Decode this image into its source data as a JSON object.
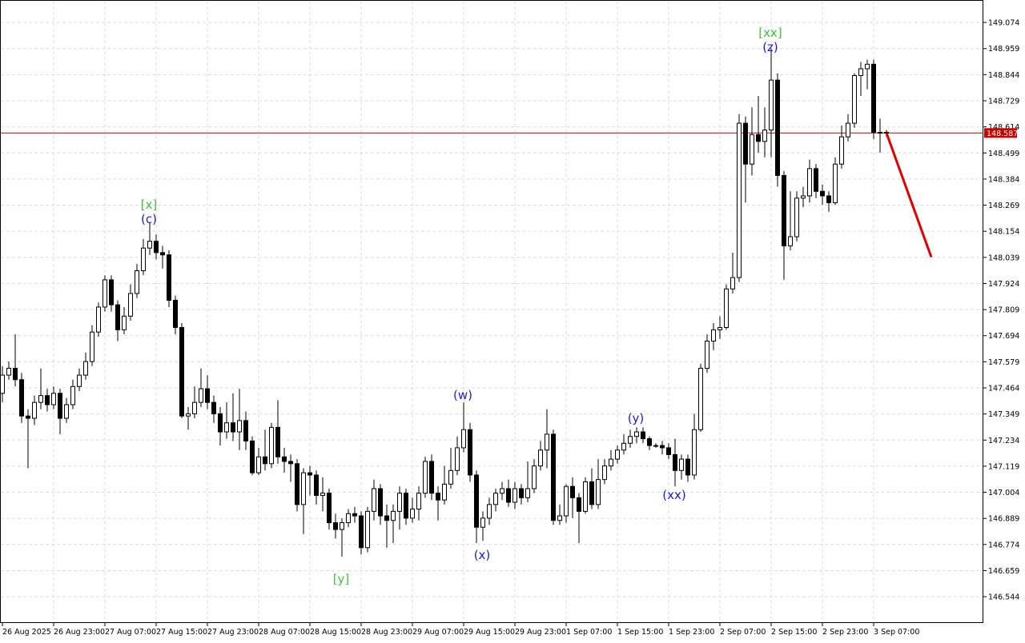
{
  "chart_data": {
    "type": "candlestick",
    "categories": [
      "26 Aug 2025",
      null,
      null,
      null,
      null,
      null,
      null,
      null,
      "26 Aug 23:00",
      null,
      null,
      null,
      null,
      null,
      null,
      null,
      "27 Aug 07:00",
      null,
      null,
      null,
      null,
      null,
      null,
      null,
      "27 Aug 15:00",
      null,
      null,
      null,
      null,
      null,
      null,
      null,
      "27 Aug 23:00",
      null,
      null,
      null,
      null,
      null,
      null,
      null,
      "28 Aug 07:00",
      null,
      null,
      null,
      null,
      null,
      null,
      null,
      "28 Aug 15:00",
      null,
      null,
      null,
      null,
      null,
      null,
      null,
      "28 Aug 23:00",
      null,
      null,
      null,
      null,
      null,
      null,
      null,
      "29 Aug 07:00",
      null,
      null,
      null,
      null,
      null,
      null,
      null,
      "29 Aug 15:00",
      null,
      null,
      null,
      null,
      null,
      null,
      null,
      "29 Aug 23:00",
      null,
      null,
      null,
      null,
      null,
      null,
      null,
      "1 Sep 07:00",
      null,
      null,
      null,
      null,
      null,
      null,
      null,
      "1 Sep 15:00",
      null,
      null,
      null,
      null,
      null,
      null,
      null,
      "1 Sep 23:00",
      null,
      null,
      null,
      null,
      null,
      null,
      null,
      "2 Sep 07:00",
      null,
      null,
      null,
      null,
      null,
      null,
      null,
      "2 Sep 15:00",
      null,
      null,
      null,
      null,
      null,
      null,
      null,
      "2 Sep 23:00",
      null,
      null,
      null,
      null,
      null,
      null,
      null,
      "3 Sep 07:00",
      null,
      null
    ],
    "open": [
      147.44,
      147.52,
      147.55,
      147.5,
      147.34,
      147.33,
      147.4,
      147.43,
      147.39,
      147.44,
      147.33,
      147.39,
      147.47,
      147.52,
      147.58,
      147.71,
      147.82,
      147.94,
      147.83,
      147.72,
      147.78,
      147.88,
      147.98,
      148.08,
      148.11,
      148.06,
      148.05,
      147.85,
      147.73,
      147.34,
      147.35,
      147.4,
      147.46,
      147.4,
      147.35,
      147.27,
      147.31,
      147.27,
      147.32,
      147.23,
      147.09,
      147.16,
      147.13,
      147.29,
      147.16,
      147.14,
      147.13,
      146.95,
      147.09,
      147.08,
      146.99,
      147.0,
      146.87,
      146.84,
      146.87,
      146.91,
      146.9,
      146.76,
      146.92,
      147.02,
      146.9,
      146.88,
      146.92,
      147.0,
      146.89,
      146.93,
      147.0,
      147.14,
      147.0,
      146.97,
      147.04,
      147.1,
      147.2,
      147.28,
      147.08,
      146.85,
      146.89,
      146.95,
      147.0,
      147.02,
      146.96,
      147.02,
      146.98,
      147.02,
      147.12,
      147.19,
      147.26,
      146.88,
      146.9,
      147.03,
      146.98,
      146.92,
      147.05,
      146.95,
      147.06,
      147.12,
      147.15,
      147.19,
      147.22,
      147.25,
      147.27,
      147.24,
      147.21,
      147.21,
      147.2,
      147.17,
      147.1,
      147.15,
      147.08,
      147.28,
      147.55,
      147.67,
      147.72,
      147.73,
      147.9,
      147.95,
      148.63,
      148.45,
      148.58,
      148.55,
      148.6,
      148.82,
      148.4,
      148.09,
      148.13,
      148.3,
      148.31,
      148.43,
      148.33,
      148.31,
      148.28,
      148.45,
      148.57,
      148.63,
      148.84,
      148.87,
      148.89,
      148.59,
      148.59
    ],
    "high": [
      147.56,
      147.58,
      147.7,
      147.53,
      147.37,
      147.43,
      147.55,
      147.46,
      147.47,
      147.46,
      147.42,
      147.5,
      147.55,
      147.62,
      147.74,
      147.84,
      147.96,
      147.96,
      147.85,
      147.82,
      147.92,
      148.01,
      148.12,
      148.19,
      148.14,
      148.09,
      148.07,
      147.87,
      147.75,
      147.38,
      147.47,
      147.55,
      147.52,
      147.43,
      147.38,
      147.4,
      147.44,
      147.46,
      147.36,
      147.25,
      147.2,
      147.28,
      147.31,
      147.41,
      147.2,
      147.17,
      147.15,
      147.11,
      147.12,
      147.1,
      147.07,
      147.02,
      146.91,
      146.89,
      146.93,
      146.94,
      146.92,
      146.94,
      147.06,
      147.04,
      146.95,
      146.95,
      147.03,
      147.02,
      146.98,
      147.03,
      147.16,
      147.17,
      147.03,
      147.12,
      147.2,
      147.25,
      147.4,
      147.31,
      147.1,
      146.92,
      146.98,
      147.02,
      147.05,
      147.06,
      147.05,
      147.04,
      147.14,
      147.15,
      147.23,
      147.37,
      147.28,
      146.95,
      147.04,
      147.07,
      147.0,
      147.07,
      147.11,
      147.15,
      147.15,
      147.19,
      147.21,
      147.26,
      147.28,
      147.29,
      147.29,
      147.25,
      147.22,
      147.23,
      147.22,
      147.24,
      147.17,
      147.17,
      147.35,
      147.57,
      147.7,
      147.75,
      147.78,
      147.92,
      148.06,
      148.67,
      148.66,
      148.7,
      148.75,
      148.7,
      148.96,
      148.85,
      148.42,
      148.33,
      148.33,
      148.35,
      148.47,
      148.45,
      148.36,
      148.33,
      148.48,
      148.62,
      148.67,
      148.85,
      148.9,
      148.91,
      148.91,
      148.65,
      148.6
    ],
    "low": [
      147.4,
      147.5,
      147.47,
      147.31,
      147.11,
      147.3,
      147.37,
      147.36,
      147.37,
      147.26,
      147.31,
      147.37,
      147.45,
      147.5,
      147.56,
      147.69,
      147.8,
      147.8,
      147.67,
      147.7,
      147.76,
      147.86,
      147.96,
      148.05,
      148.03,
      147.99,
      147.82,
      147.7,
      147.33,
      147.28,
      147.33,
      147.38,
      147.37,
      147.31,
      147.21,
      147.24,
      147.23,
      147.19,
      147.19,
      147.08,
      147.08,
      147.1,
      147.11,
      147.13,
      147.09,
      147.05,
      146.92,
      146.82,
      146.99,
      146.95,
      146.92,
      146.84,
      146.8,
      146.72,
      146.85,
      146.87,
      146.73,
      146.74,
      146.88,
      146.86,
      146.76,
      146.78,
      146.84,
      146.86,
      146.87,
      146.88,
      146.98,
      146.97,
      146.88,
      146.95,
      147.02,
      147.08,
      147.18,
      147.05,
      146.78,
      146.79,
      146.86,
      146.92,
      146.97,
      146.94,
      146.93,
      146.95,
      146.96,
      147.0,
      147.1,
      147.11,
      146.86,
      146.86,
      146.87,
      146.89,
      146.78,
      146.91,
      146.93,
      146.93,
      147.04,
      147.1,
      147.13,
      147.17,
      147.2,
      147.22,
      147.22,
      147.19,
      147.2,
      147.17,
      147.15,
      147.03,
      147.06,
      147.05,
      147.06,
      147.27,
      147.53,
      147.63,
      147.68,
      147.72,
      147.88,
      147.93,
      148.28,
      148.4,
      148.5,
      148.48,
      148.48,
      148.35,
      147.94,
      148.07,
      148.11,
      148.26,
      148.28,
      148.3,
      148.27,
      148.24,
      148.27,
      148.43,
      148.55,
      148.61,
      148.75,
      148.78,
      148.56,
      148.5,
      148.57
    ],
    "close": [
      147.52,
      147.55,
      147.5,
      147.34,
      147.33,
      147.4,
      147.43,
      147.39,
      147.44,
      147.33,
      147.39,
      147.47,
      147.52,
      147.58,
      147.71,
      147.82,
      147.94,
      147.83,
      147.72,
      147.78,
      147.88,
      147.98,
      148.08,
      148.11,
      148.06,
      148.05,
      147.85,
      147.73,
      147.34,
      147.35,
      147.4,
      147.46,
      147.4,
      147.35,
      147.27,
      147.31,
      147.27,
      147.32,
      147.23,
      147.09,
      147.16,
      147.13,
      147.29,
      147.16,
      147.14,
      147.13,
      146.95,
      147.09,
      147.08,
      146.99,
      147.0,
      146.87,
      146.84,
      146.87,
      146.91,
      146.9,
      146.76,
      146.92,
      147.02,
      146.9,
      146.88,
      146.92,
      147.0,
      146.89,
      146.93,
      147.0,
      147.14,
      147.0,
      146.97,
      147.04,
      147.1,
      147.2,
      147.28,
      147.08,
      146.85,
      146.89,
      146.95,
      147.0,
      147.02,
      146.96,
      147.02,
      146.98,
      147.02,
      147.12,
      147.19,
      147.26,
      146.88,
      146.9,
      147.03,
      146.98,
      146.92,
      147.05,
      146.95,
      147.06,
      147.12,
      147.15,
      147.19,
      147.22,
      147.25,
      147.27,
      147.24,
      147.21,
      147.21,
      147.2,
      147.17,
      147.1,
      147.15,
      147.08,
      147.28,
      147.55,
      147.67,
      147.72,
      147.73,
      147.9,
      147.95,
      148.63,
      148.45,
      148.58,
      148.55,
      148.6,
      148.82,
      148.4,
      148.09,
      148.13,
      148.3,
      148.31,
      148.43,
      148.33,
      148.31,
      148.28,
      148.45,
      148.57,
      148.63,
      148.84,
      148.87,
      148.89,
      148.59,
      148.59,
      148.587
    ],
    "up_color": "#ffffff",
    "down_color": "#000000",
    "ylim": [
      146.428,
      149.173
    ],
    "yticks": [
      146.544,
      146.659,
      146.774,
      146.889,
      147.004,
      147.119,
      147.234,
      147.349,
      147.464,
      147.579,
      147.694,
      147.809,
      147.924,
      148.039,
      148.154,
      148.269,
      148.384,
      148.499,
      148.614,
      148.729,
      148.844,
      148.959,
      149.074
    ],
    "grid": true,
    "current_price": 148.587,
    "current_price_color": "#cc0000",
    "forecast": [
      148.587,
      148.04
    ],
    "forecast_color": "#e00000",
    "annotations": [
      {
        "text": "[xx]",
        "color": "#3cc43c"
      },
      {
        "text": "(z)",
        "color": "#1a1ae6"
      },
      {
        "text": "[x]",
        "color": "#3cc43c"
      },
      {
        "text": "(c)",
        "color": "#1a1ae6"
      },
      {
        "text": "(w)",
        "color": "#1a1ae6"
      },
      {
        "text": "(y)",
        "color": "#1a1ae6"
      },
      {
        "text": "(x)",
        "color": "#1a1ae6"
      },
      {
        "text": "(xx)",
        "color": "#1a1ae6"
      },
      {
        "text": "[y]",
        "color": "#3cc43c"
      }
    ]
  }
}
